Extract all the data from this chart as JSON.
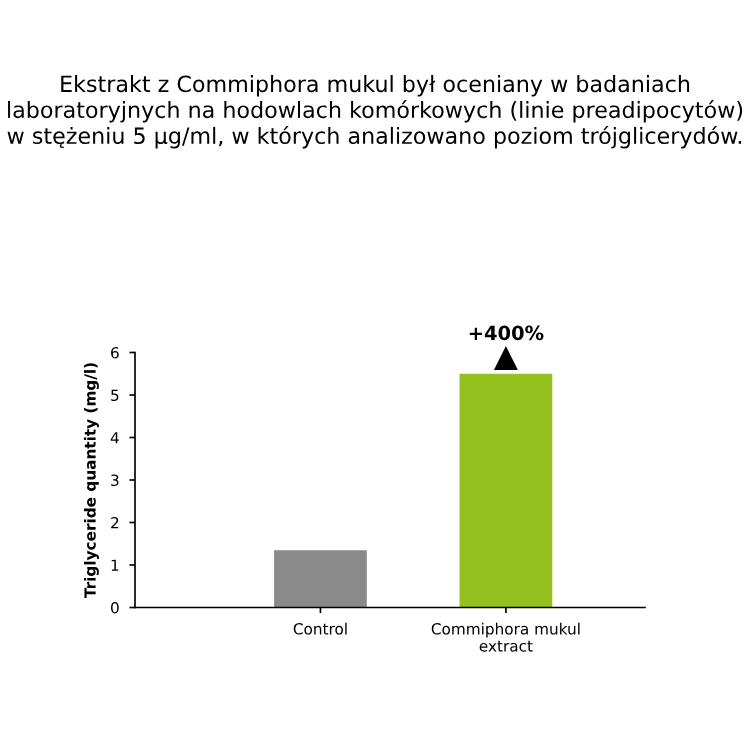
{
  "chart_data": {
    "type": "bar",
    "title": "Ekstrakt z Commiphora mukul był oceniany w badaniach laboratoryjnych na hodowlach komórkowych (linie preadipocytów) w stężeniu 5 µg/ml, w których analizowano poziom trójglicerydów.",
    "ylabel": "Triglyceride quantity (mg/l)",
    "categories": [
      "Control",
      "Commiphora mukul\nextract"
    ],
    "values": [
      1.35,
      5.5
    ],
    "colors": [
      "#8a8a8a",
      "#95c11f"
    ],
    "ylim": [
      0,
      6
    ],
    "yticks": [
      0,
      1,
      2,
      3,
      4,
      5,
      6
    ],
    "annotations": [
      {
        "text": "+400%",
        "x": "Commiphora mukul\nextract",
        "y": 5.5
      }
    ],
    "grid": false
  }
}
